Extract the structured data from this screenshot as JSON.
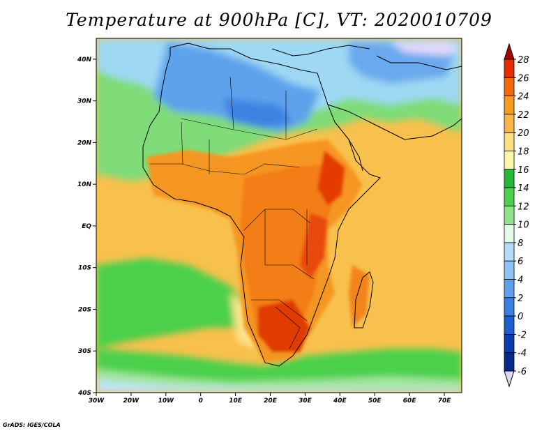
{
  "title": "Temperature at 900hPa [C], VT: 2020010709",
  "credit": "GrADS: IGES/COLA",
  "map": {
    "lon_range": [
      -30,
      75
    ],
    "lat_range": [
      -40,
      45
    ],
    "lat_ticks": [
      "40N",
      "30N",
      "20N",
      "10N",
      "EQ",
      "10S",
      "20S",
      "30S",
      "40S"
    ],
    "lon_ticks": [
      "30W",
      "20W",
      "10W",
      "0",
      "10E",
      "20E",
      "30E",
      "40E",
      "50E",
      "60E",
      "70E"
    ]
  },
  "colorbar": {
    "levels": [
      "28",
      "26",
      "24",
      "22",
      "20",
      "18",
      "16",
      "14",
      "12",
      "10",
      "8",
      "6",
      "4",
      "2",
      "0",
      "-2",
      "-4",
      "-6"
    ],
    "colors": [
      "#a50000",
      "#e52d00",
      "#f26a0e",
      "#f59a23",
      "#f7b54a",
      "#fbe083",
      "#fbf6ac",
      "#25b93a",
      "#4dd04e",
      "#91e48b",
      "#e5fae8",
      "#b3dcf8",
      "#8fc2f4",
      "#5fa1ec",
      "#3a80e0",
      "#1d5ed1",
      "#0c3ab0",
      "#072a8a",
      "#dcd6f7"
    ]
  }
}
